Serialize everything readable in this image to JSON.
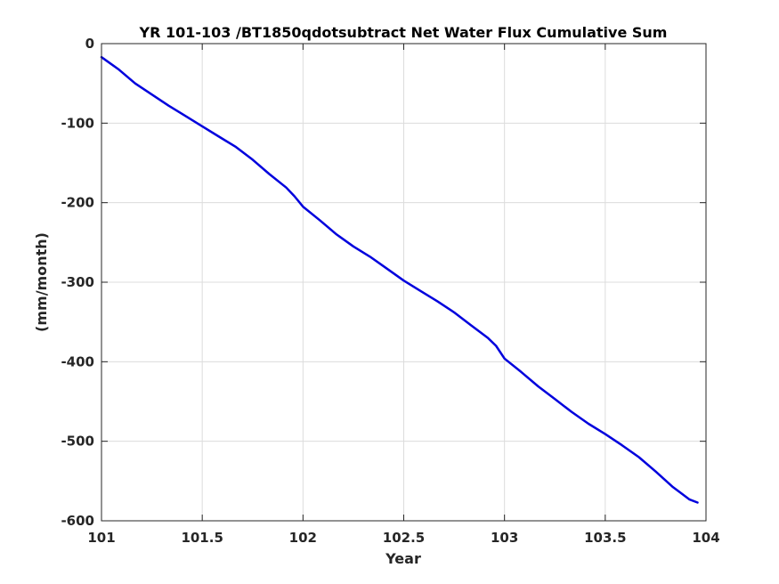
{
  "chart_data": {
    "type": "line",
    "title": "YR 101-103 /BT1850qdotsubtract Net Water Flux Cumulative Sum",
    "xlabel": "Year",
    "ylabel": "(mm/month)",
    "xlim": [
      101,
      104
    ],
    "ylim": [
      -600,
      0
    ],
    "xticks": [
      101,
      101.5,
      102,
      102.5,
      103,
      103.5,
      104
    ],
    "xtick_labels": [
      "101",
      "101.5",
      "102",
      "102.5",
      "103",
      "103.5",
      "104"
    ],
    "yticks": [
      0,
      -100,
      -200,
      -300,
      -400,
      -500,
      -600
    ],
    "ytick_labels": [
      "0",
      "-100",
      "-200",
      "-300",
      "-400",
      "-500",
      "-600"
    ],
    "grid": true,
    "legend": "none",
    "series": [
      {
        "color": "#0000dd",
        "x": [
          101.0,
          101.083,
          101.167,
          101.25,
          101.333,
          101.417,
          101.5,
          101.583,
          101.667,
          101.75,
          101.833,
          101.917,
          101.958,
          102.0,
          102.083,
          102.167,
          102.25,
          102.333,
          102.417,
          102.5,
          102.583,
          102.667,
          102.75,
          102.833,
          102.917,
          102.958,
          103.0,
          103.083,
          103.167,
          103.25,
          103.333,
          103.417,
          103.5,
          103.583,
          103.667,
          103.75,
          103.833,
          103.917,
          103.958
        ],
        "y": [
          -17,
          -32,
          -50,
          -64,
          -78,
          -91,
          -104,
          -117,
          -130,
          -146,
          -164,
          -181,
          -192,
          -205,
          -222,
          -240,
          -255,
          -268,
          -283,
          -298,
          -311,
          -324,
          -338,
          -354,
          -370,
          -380,
          -396,
          -413,
          -431,
          -447,
          -463,
          -478,
          -491,
          -505,
          -520,
          -538,
          -557,
          -573,
          -577
        ]
      }
    ]
  }
}
